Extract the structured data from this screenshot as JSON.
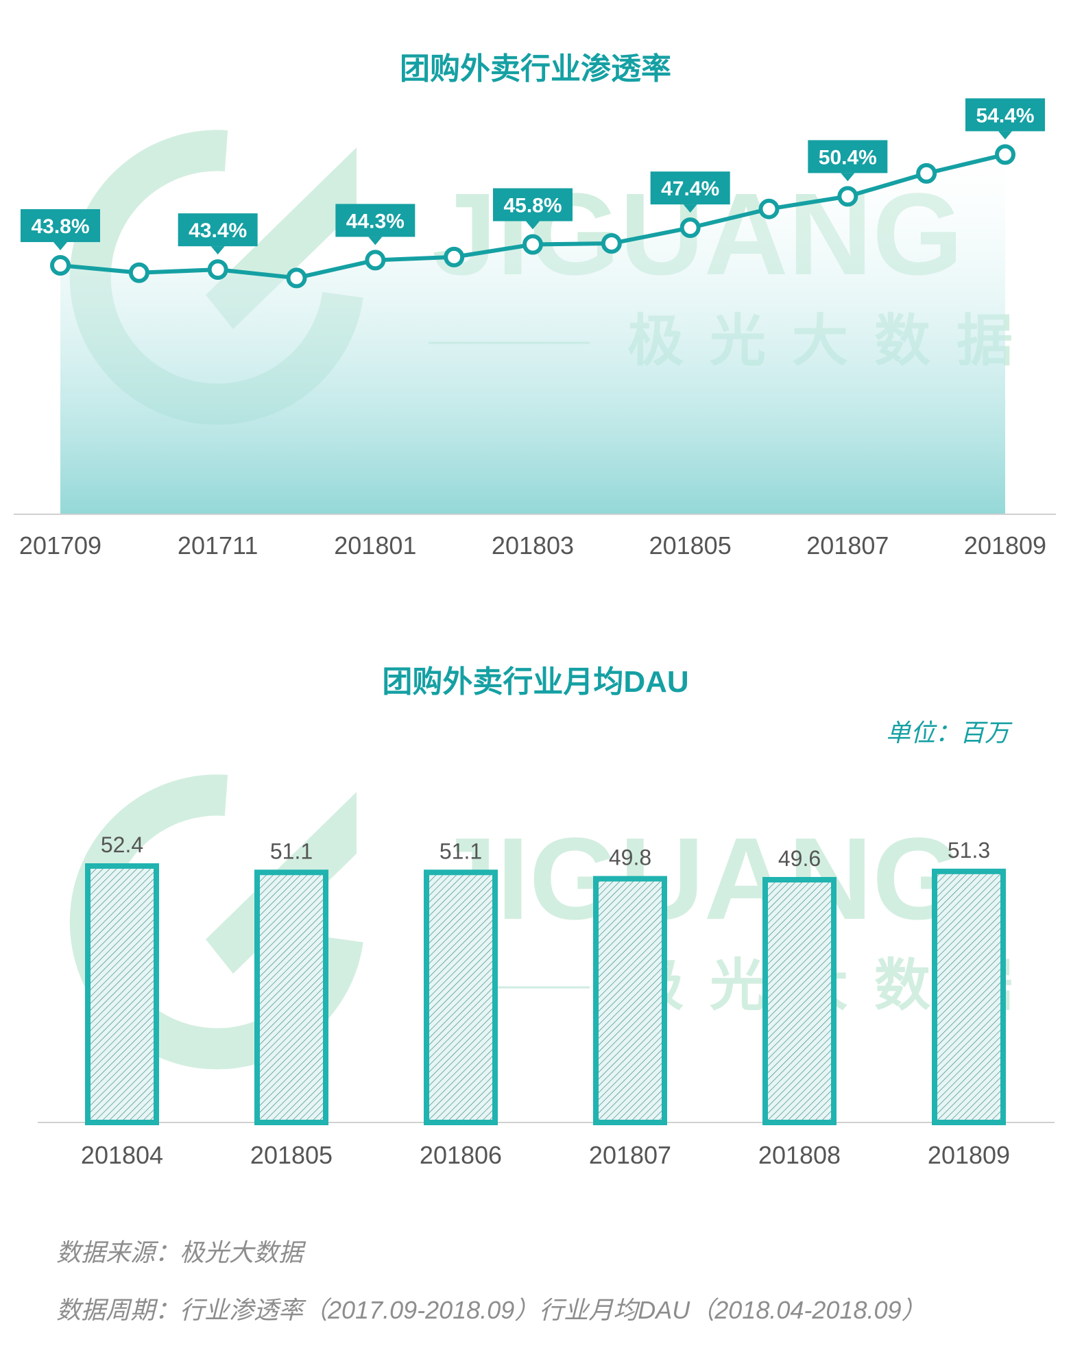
{
  "charts_titles": {
    "line": "团购外卖行业渗透率",
    "bar": "团购外卖行业月均DAU",
    "bar_unit": "单位：百万"
  },
  "watermark": {
    "brand": "JIGUANG",
    "cn": "极光大数据"
  },
  "footer": {
    "source": "数据来源：极光大数据",
    "period": "数据周期：行业渗透率（2017.09-2018.09）行业月均DAU（2018.04-2018.09）"
  },
  "colors": {
    "teal": "#15a0a3",
    "bar_fill": "#20b3b0",
    "watermark": "#cdeadb",
    "axis_text": "#555555"
  },
  "chart_data": [
    {
      "type": "line",
      "title": "团购外卖行业渗透率",
      "x": [
        "201709",
        "201710",
        "201711",
        "201712",
        "201801",
        "201802",
        "201803",
        "201804",
        "201805",
        "201806",
        "201807",
        "201808",
        "201809"
      ],
      "x_tick_labels": [
        "201709",
        "201711",
        "201801",
        "201803",
        "201805",
        "201807",
        "201809"
      ],
      "series": [
        {
          "values": [
            43.8,
            43.1,
            43.4,
            42.6,
            44.3,
            44.6,
            45.8,
            45.9,
            47.4,
            49.2,
            50.4,
            52.6,
            54.4
          ]
        }
      ],
      "data_labels": {
        "0": "43.8%",
        "2": "43.4%",
        "4": "44.3%",
        "6": "45.8%",
        "8": "47.4%",
        "10": "50.4%",
        "12": "54.4%"
      },
      "ylim": [
        20,
        60
      ],
      "grid": false
    },
    {
      "type": "bar",
      "title": "团购外卖行业月均DAU",
      "unit": "单位：百万",
      "categories": [
        "201804",
        "201805",
        "201806",
        "201807",
        "201808",
        "201809"
      ],
      "values": [
        52.4,
        51.1,
        51.1,
        49.8,
        49.6,
        51.3
      ],
      "value_labels": [
        "52.4",
        "51.1",
        "51.1",
        "49.8",
        "49.6",
        "51.3"
      ],
      "ylim": [
        0,
        52.4
      ],
      "grid": false
    }
  ]
}
